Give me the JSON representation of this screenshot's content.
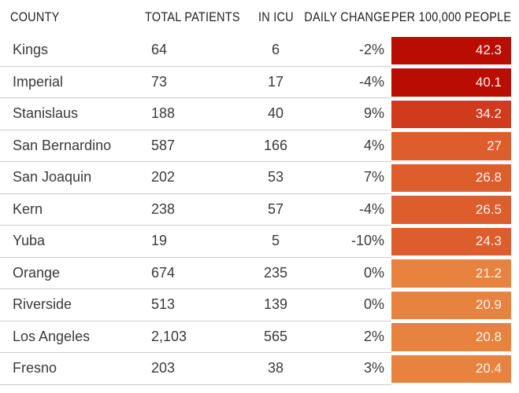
{
  "chart_data": {
    "type": "table",
    "columns": [
      "COUNTY",
      "TOTAL PATIENTS",
      "IN ICU",
      "DAILY CHANGE",
      "PER 100,000 PEOPLE"
    ],
    "rows": [
      {
        "county": "Kings",
        "total_patients": "64",
        "in_icu": "6",
        "daily_change": "-2%",
        "per_100k": "42.3",
        "cell_color": "#b90d04"
      },
      {
        "county": "Imperial",
        "total_patients": "73",
        "in_icu": "17",
        "daily_change": "-4%",
        "per_100k": "40.1",
        "cell_color": "#b90d04"
      },
      {
        "county": "Stanislaus",
        "total_patients": "188",
        "in_icu": "40",
        "daily_change": "9%",
        "per_100k": "34.2",
        "cell_color": "#d03b1d"
      },
      {
        "county": "San Bernardino",
        "total_patients": "587",
        "in_icu": "166",
        "daily_change": "4%",
        "per_100k": "27",
        "cell_color": "#dd5d2c"
      },
      {
        "county": "San Joaquin",
        "total_patients": "202",
        "in_icu": "53",
        "daily_change": "7%",
        "per_100k": "26.8",
        "cell_color": "#dd5d2c"
      },
      {
        "county": "Kern",
        "total_patients": "238",
        "in_icu": "57",
        "daily_change": "-4%",
        "per_100k": "26.5",
        "cell_color": "#dd5d2c"
      },
      {
        "county": "Yuba",
        "total_patients": "19",
        "in_icu": "5",
        "daily_change": "-10%",
        "per_100k": "24.3",
        "cell_color": "#dd5d2c"
      },
      {
        "county": "Orange",
        "total_patients": "674",
        "in_icu": "235",
        "daily_change": "0%",
        "per_100k": "21.2",
        "cell_color": "#e8823f"
      },
      {
        "county": "Riverside",
        "total_patients": "513",
        "in_icu": "139",
        "daily_change": "0%",
        "per_100k": "20.9",
        "cell_color": "#e8823f"
      },
      {
        "county": "Los Angeles",
        "total_patients": "2,103",
        "in_icu": "565",
        "daily_change": "2%",
        "per_100k": "20.8",
        "cell_color": "#e8823f"
      },
      {
        "county": "Fresno",
        "total_patients": "203",
        "in_icu": "38",
        "daily_change": "3%",
        "per_100k": "20.4",
        "cell_color": "#e8823f"
      }
    ],
    "heat_column": "PER 100,000 PEOPLE",
    "color_scale": {
      "high": "#b90d04",
      "mid_high": "#d03b1d",
      "mid": "#dd5d2c",
      "low": "#e8823f"
    },
    "layout": {
      "grid": "horizontal-row-separators-only",
      "legend": "none"
    }
  },
  "colors": {
    "separator": "#cccccc",
    "header_text": "#1f1f1f",
    "body_text": "#3a3a3a",
    "heat_cell_text": "#fdf4ea",
    "background": "#ffffff"
  }
}
